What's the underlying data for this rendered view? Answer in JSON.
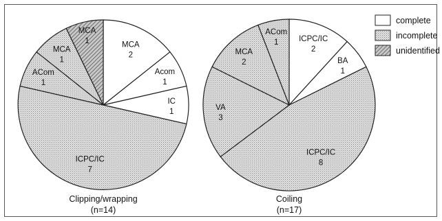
{
  "chart_data": [
    {
      "type": "pie",
      "caption": "Clipping/wrapping",
      "n_label": "(n=14)",
      "slices": [
        {
          "label": "MCA",
          "value": 2,
          "status": "complete"
        },
        {
          "label": "Acom",
          "value": 1,
          "status": "complete"
        },
        {
          "label": "IC",
          "value": 1,
          "status": "complete"
        },
        {
          "label": "ICPC/IC",
          "value": 7,
          "status": "incomplete"
        },
        {
          "label": "ACom",
          "value": 1,
          "status": "incomplete"
        },
        {
          "label": "MCA",
          "value": 1,
          "status": "incomplete"
        },
        {
          "label": "MCA",
          "value": 1,
          "status": "unidentified"
        }
      ]
    },
    {
      "type": "pie",
      "caption": "Coiling",
      "n_label": "(n=17)",
      "slices": [
        {
          "label": "ICPC/IC",
          "value": 2,
          "status": "complete"
        },
        {
          "label": "BA",
          "value": 1,
          "status": "complete"
        },
        {
          "label": "ICPC/IC",
          "value": 8,
          "status": "incomplete"
        },
        {
          "label": "VA",
          "value": 3,
          "status": "incomplete"
        },
        {
          "label": "MCA",
          "value": 2,
          "status": "incomplete"
        },
        {
          "label": "ACom",
          "value": 1,
          "status": "incomplete"
        }
      ]
    }
  ],
  "legend": {
    "placement": "top-right",
    "items": [
      {
        "key": "complete",
        "label": "complete"
      },
      {
        "key": "incomplete",
        "label": "incomplete"
      },
      {
        "key": "unidentified",
        "label": "unidentified"
      }
    ]
  },
  "colors": {
    "complete": "#ffffff",
    "incomplete": "#d4d4d4",
    "unidentified": "#a8a8a8",
    "stroke": "#222222"
  }
}
